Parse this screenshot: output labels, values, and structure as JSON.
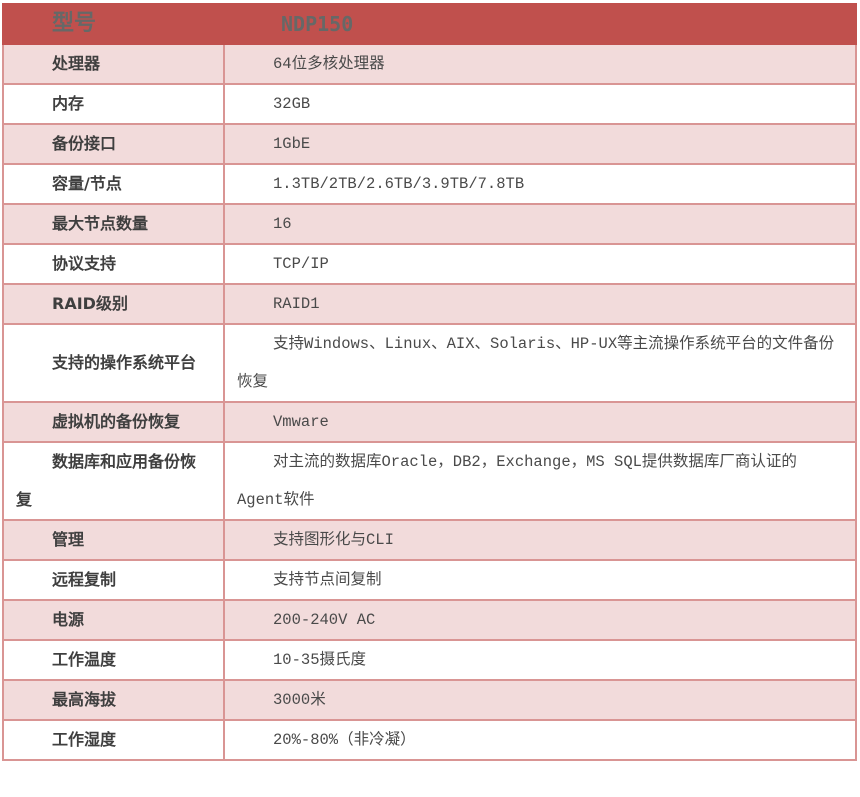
{
  "header": {
    "label": "型号",
    "value": "NDP150"
  },
  "rows": [
    {
      "label": "处理器",
      "value": "64位多核处理器"
    },
    {
      "label": "内存",
      "value": "32GB"
    },
    {
      "label": "备份接口",
      "value": "1GbE"
    },
    {
      "label": "容量/节点",
      "value": "1.3TB/2TB/2.6TB/3.9TB/7.8TB"
    },
    {
      "label": "最大节点数量",
      "value": "16"
    },
    {
      "label": "协议支持",
      "value": "TCP/IP"
    },
    {
      "label": "RAID级别",
      "value": "RAID1"
    },
    {
      "label": "支持的操作系统平台",
      "value": "支持Windows、Linux、AIX、Solaris、HP-UX等主流操作系统平台的文件备份恢复"
    },
    {
      "label": "虚拟机的备份恢复",
      "value": "Vmware"
    },
    {
      "label": "数据库和应用备份恢复",
      "value": "对主流的数据库Oracle，DB2，Exchange，MS SQL提供数据库厂商认证的Agent软件"
    },
    {
      "label": "管理",
      "value": "支持图形化与CLI"
    },
    {
      "label": "远程复制",
      "value": "支持节点间复制"
    },
    {
      "label": "电源",
      "value": "200-240V AC"
    },
    {
      "label": "工作温度",
      "value": "10-35摄氏度"
    },
    {
      "label": "最高海拔",
      "value": "3000米"
    },
    {
      "label": "工作湿度",
      "value": "20%-80%（非冷凝）"
    }
  ],
  "colors": {
    "header_bg": "#c0504d",
    "stripe_bg": "#f2dbdb",
    "border": "#d99594"
  }
}
